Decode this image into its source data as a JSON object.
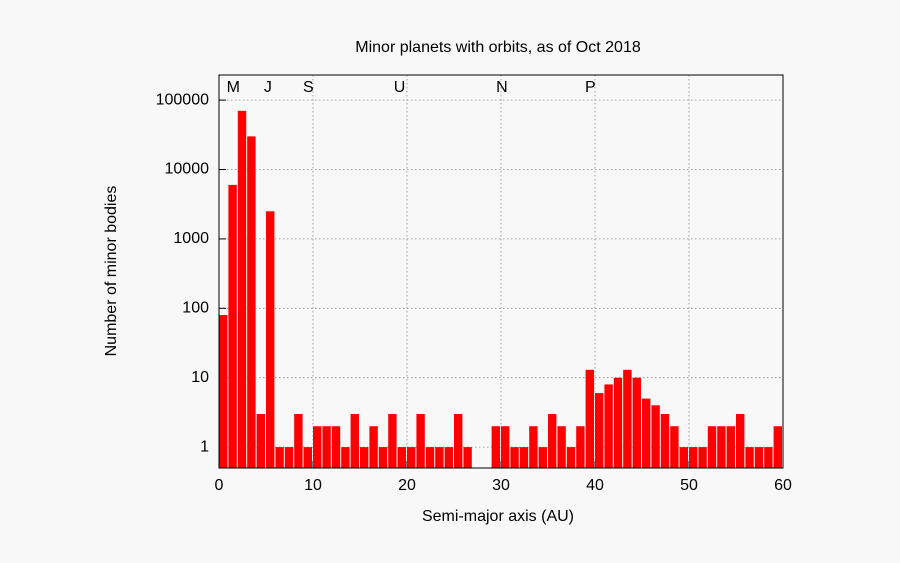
{
  "chart_data": {
    "type": "histogram",
    "title": "Minor planets with orbits, as of Oct 2018",
    "x_label": "Semi-major axis (AU)",
    "y_label": "Number of minor bodies",
    "bins": [
      0,
      1,
      2,
      3,
      4,
      5,
      6,
      7,
      8,
      9,
      10,
      11,
      12,
      13,
      14,
      15,
      16,
      17,
      18,
      19,
      20,
      21,
      22,
      23,
      24,
      25,
      26,
      27,
      28,
      29,
      30,
      31,
      32,
      33,
      34,
      35,
      36,
      37,
      38,
      39,
      40,
      41,
      42,
      43,
      44,
      45,
      46,
      47,
      48,
      49,
      50,
      51,
      52,
      53,
      54,
      55,
      56,
      57,
      58,
      59,
      60
    ],
    "values": [
      80,
      6000,
      70000,
      30000,
      3,
      2500,
      1,
      1,
      3,
      1,
      2,
      2,
      2,
      1,
      3,
      1,
      2,
      1,
      3,
      1,
      1,
      3,
      1,
      1,
      1,
      3,
      1,
      0,
      0,
      2,
      2,
      1,
      1,
      2,
      1,
      3,
      2,
      1,
      2,
      13,
      6,
      8,
      10,
      13,
      10,
      5,
      4,
      3,
      2,
      1,
      1,
      1,
      2,
      2,
      2,
      3,
      1,
      1,
      1,
      2
    ],
    "color": "#ff0000",
    "xlim": [
      0,
      60
    ],
    "xticks": [
      0,
      10,
      20,
      30,
      40,
      50,
      60
    ],
    "ylim": [
      0.5,
      230000
    ],
    "y_scale": "log",
    "yticks": [
      1,
      10,
      100,
      1000,
      10000,
      100000
    ],
    "grid": true,
    "annotations": [
      {
        "text": "M",
        "x": 1.52
      },
      {
        "text": "J",
        "x": 5.2
      },
      {
        "text": "S",
        "x": 9.5
      },
      {
        "text": "U",
        "x": 19.2
      },
      {
        "text": "N",
        "x": 30.1
      },
      {
        "text": "P",
        "x": 39.5
      }
    ]
  }
}
